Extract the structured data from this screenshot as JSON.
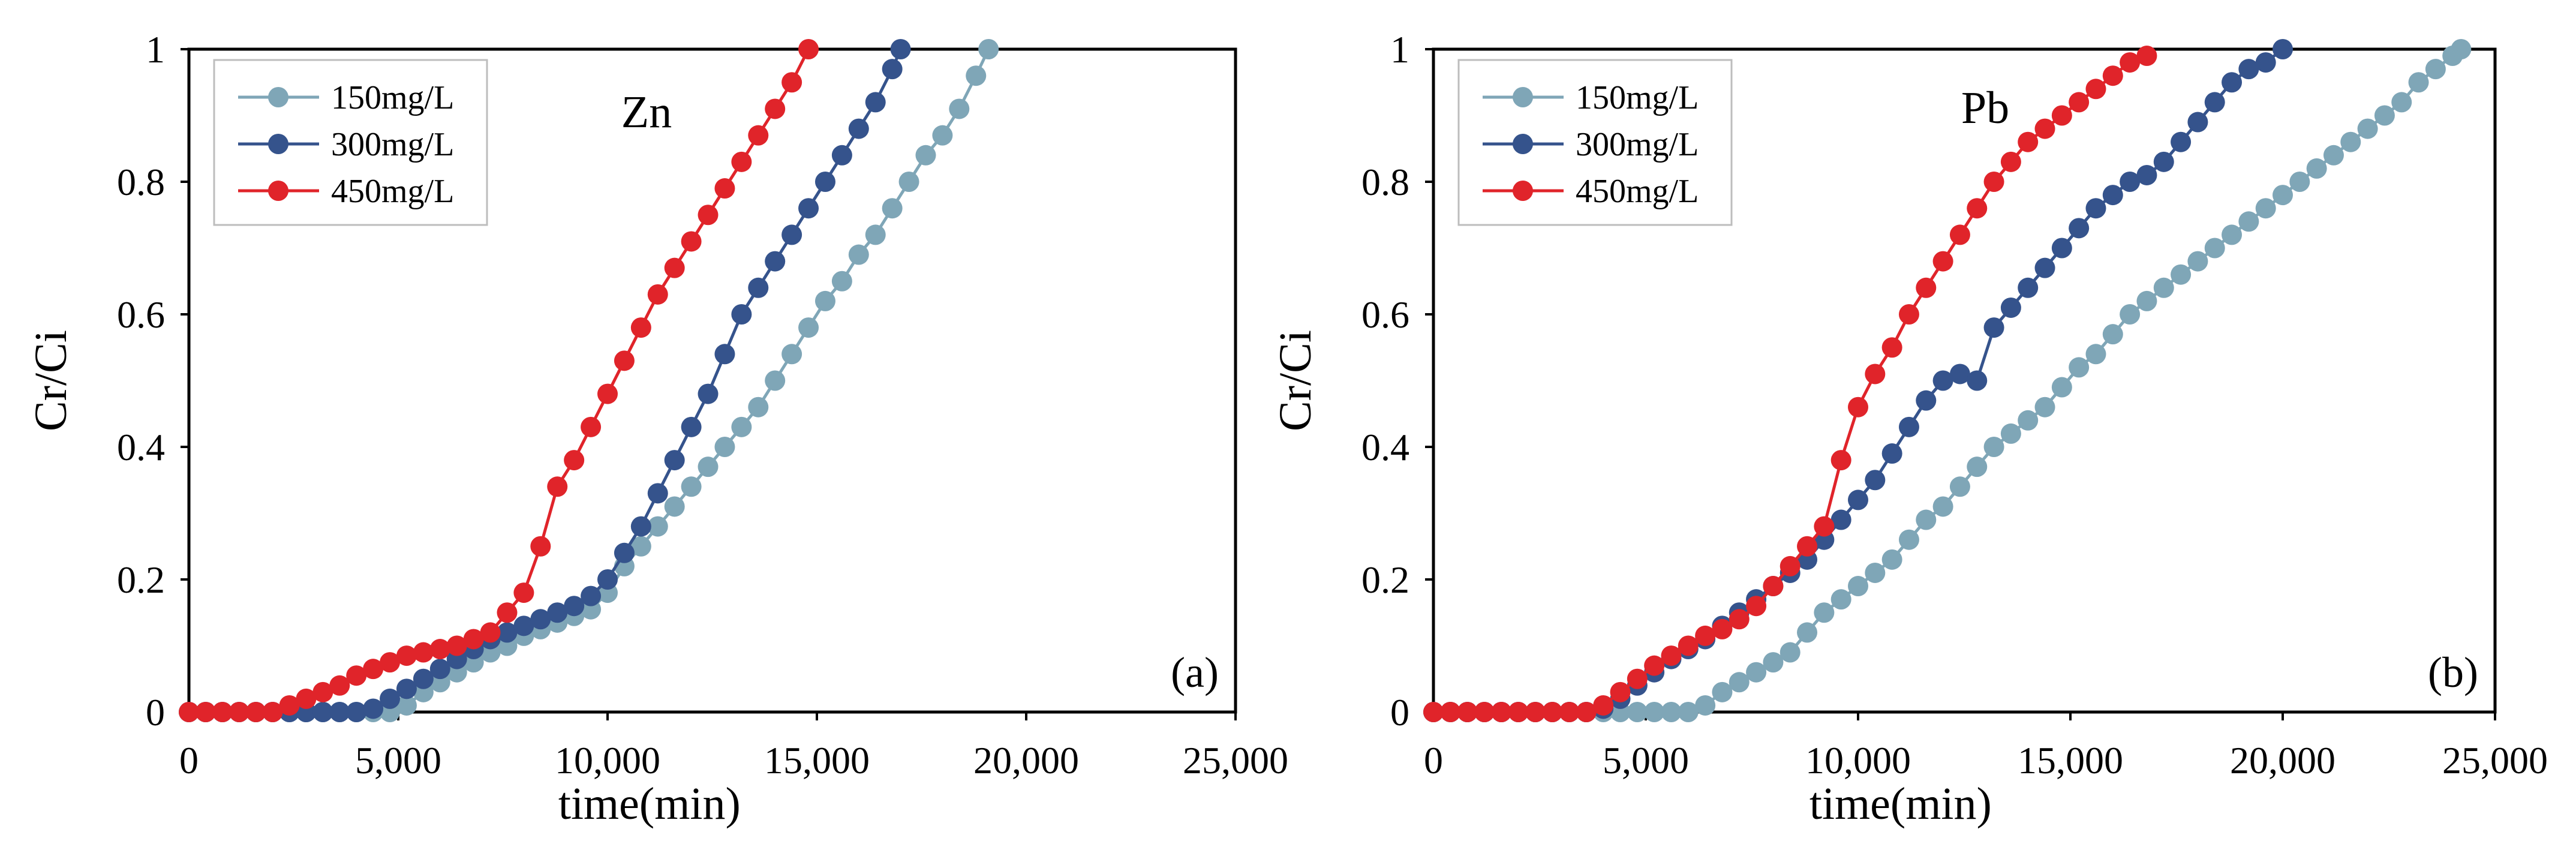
{
  "figure": {
    "colors": {
      "s150": "#7fa6b7",
      "s300": "#35538c",
      "s450": "#e0242a"
    }
  },
  "chart_data": [
    {
      "type": "line",
      "panel_label": "(a)",
      "metal": "Zn",
      "xlabel": "time(min)",
      "ylabel": "Cr/Ci",
      "xlim": [
        0,
        25000
      ],
      "ylim": [
        0,
        1
      ],
      "xticks": [
        "0",
        "5,000",
        "10,000",
        "15,000",
        "20,000",
        "25,000"
      ],
      "yticks": [
        "0",
        "0.2",
        "0.4",
        "0.6",
        "0.8",
        "1"
      ],
      "legend": [
        "150mg/L",
        "300mg/L",
        "450mg/L"
      ],
      "series": [
        {
          "name": "150mg/L",
          "x": [
            0,
            400,
            800,
            1200,
            1600,
            2000,
            2400,
            2800,
            3200,
            3600,
            4000,
            4400,
            4800,
            5200,
            5600,
            6000,
            6400,
            6800,
            7200,
            7600,
            8000,
            8400,
            8800,
            9200,
            9600,
            10000,
            10400,
            10800,
            11200,
            11600,
            12000,
            12400,
            12800,
            13200,
            13600,
            14000,
            14400,
            14800,
            15200,
            15600,
            16000,
            16400,
            16800,
            17200,
            17600,
            18000,
            18400,
            18800,
            19100
          ],
          "y": [
            0,
            0,
            0,
            0,
            0,
            0,
            0,
            0,
            0,
            0,
            0,
            0,
            0,
            0.01,
            0.03,
            0.045,
            0.06,
            0.075,
            0.09,
            0.1,
            0.115,
            0.125,
            0.135,
            0.145,
            0.155,
            0.18,
            0.22,
            0.25,
            0.28,
            0.31,
            0.34,
            0.37,
            0.4,
            0.43,
            0.46,
            0.5,
            0.54,
            0.58,
            0.62,
            0.65,
            0.69,
            0.72,
            0.76,
            0.8,
            0.84,
            0.87,
            0.91,
            0.96,
            1.0
          ]
        },
        {
          "name": "300mg/L",
          "x": [
            0,
            400,
            800,
            1200,
            1600,
            2000,
            2400,
            2800,
            3200,
            3600,
            4000,
            4400,
            4800,
            5200,
            5600,
            6000,
            6400,
            6800,
            7200,
            7600,
            8000,
            8400,
            8800,
            9200,
            9600,
            10000,
            10400,
            10800,
            11200,
            11600,
            12000,
            12400,
            12800,
            13200,
            13600,
            14000,
            14400,
            14800,
            15200,
            15600,
            16000,
            16400,
            16800,
            17000
          ],
          "y": [
            0,
            0,
            0,
            0,
            0,
            0,
            0,
            0,
            0,
            0,
            0,
            0.005,
            0.02,
            0.035,
            0.05,
            0.065,
            0.08,
            0.095,
            0.11,
            0.12,
            0.13,
            0.14,
            0.15,
            0.16,
            0.175,
            0.2,
            0.24,
            0.28,
            0.33,
            0.38,
            0.43,
            0.48,
            0.54,
            0.6,
            0.64,
            0.68,
            0.72,
            0.76,
            0.8,
            0.84,
            0.88,
            0.92,
            0.97,
            1.0
          ]
        },
        {
          "name": "450mg/L",
          "x": [
            0,
            400,
            800,
            1200,
            1600,
            2000,
            2400,
            2800,
            3200,
            3600,
            4000,
            4400,
            4800,
            5200,
            5600,
            6000,
            6400,
            6800,
            7200,
            7600,
            8000,
            8400,
            8800,
            9200,
            9600,
            10000,
            10400,
            10800,
            11200,
            11600,
            12000,
            12400,
            12800,
            13200,
            13600,
            14000,
            14400,
            14800
          ],
          "y": [
            0,
            0,
            0,
            0,
            0,
            0,
            0.01,
            0.02,
            0.03,
            0.04,
            0.055,
            0.065,
            0.075,
            0.085,
            0.09,
            0.095,
            0.1,
            0.11,
            0.12,
            0.15,
            0.18,
            0.25,
            0.34,
            0.38,
            0.43,
            0.48,
            0.53,
            0.58,
            0.63,
            0.67,
            0.71,
            0.75,
            0.79,
            0.83,
            0.87,
            0.91,
            0.95,
            1.0
          ]
        }
      ]
    },
    {
      "type": "line",
      "panel_label": "(b)",
      "metal": "Pb",
      "xlabel": "time(min)",
      "ylabel": "Cr/Ci",
      "xlim": [
        0,
        25000
      ],
      "ylim": [
        0,
        1
      ],
      "xticks": [
        "0",
        "5,000",
        "10,000",
        "15,000",
        "20,000",
        "25,000"
      ],
      "yticks": [
        "0",
        "0.2",
        "0.4",
        "0.6",
        "0.8",
        "1"
      ],
      "legend": [
        "150mg/L",
        "300mg/L",
        "450mg/L"
      ],
      "series": [
        {
          "name": "150mg/L",
          "x": [
            0,
            400,
            800,
            1200,
            1600,
            2000,
            2400,
            2800,
            3200,
            3600,
            4000,
            4400,
            4800,
            5200,
            5600,
            6000,
            6400,
            6800,
            7200,
            7600,
            8000,
            8400,
            8800,
            9200,
            9600,
            10000,
            10400,
            10800,
            11200,
            11600,
            12000,
            12400,
            12800,
            13200,
            13600,
            14000,
            14400,
            14800,
            15200,
            15600,
            16000,
            16400,
            16800,
            17200,
            17600,
            18000,
            18400,
            18800,
            19200,
            19600,
            20000,
            20400,
            20800,
            21200,
            21600,
            22000,
            22400,
            22800,
            23200,
            23600,
            24000,
            24200
          ],
          "y": [
            0,
            0,
            0,
            0,
            0,
            0,
            0,
            0,
            0,
            0,
            0,
            0,
            0,
            0,
            0,
            0,
            0.01,
            0.03,
            0.045,
            0.06,
            0.075,
            0.09,
            0.12,
            0.15,
            0.17,
            0.19,
            0.21,
            0.23,
            0.26,
            0.29,
            0.31,
            0.34,
            0.37,
            0.4,
            0.42,
            0.44,
            0.46,
            0.49,
            0.52,
            0.54,
            0.57,
            0.6,
            0.62,
            0.64,
            0.66,
            0.68,
            0.7,
            0.72,
            0.74,
            0.76,
            0.78,
            0.8,
            0.82,
            0.84,
            0.86,
            0.88,
            0.9,
            0.92,
            0.95,
            0.97,
            0.99,
            1.0
          ]
        },
        {
          "name": "300mg/L",
          "x": [
            0,
            400,
            800,
            1200,
            1600,
            2000,
            2400,
            2800,
            3200,
            3600,
            4000,
            4400,
            4800,
            5200,
            5600,
            6000,
            6400,
            6800,
            7200,
            7600,
            8000,
            8400,
            8800,
            9200,
            9600,
            10000,
            10400,
            10800,
            11200,
            11600,
            12000,
            12400,
            12800,
            13200,
            13600,
            14000,
            14400,
            14800,
            15200,
            15600,
            16000,
            16400,
            16800,
            17200,
            17600,
            18000,
            18400,
            18800,
            19200,
            19600,
            20000
          ],
          "y": [
            0,
            0,
            0,
            0,
            0,
            0,
            0,
            0,
            0,
            0,
            0.005,
            0.02,
            0.04,
            0.06,
            0.08,
            0.095,
            0.11,
            0.13,
            0.15,
            0.17,
            0.19,
            0.21,
            0.23,
            0.26,
            0.29,
            0.32,
            0.35,
            0.39,
            0.43,
            0.47,
            0.5,
            0.51,
            0.5,
            0.58,
            0.61,
            0.64,
            0.67,
            0.7,
            0.73,
            0.76,
            0.78,
            0.8,
            0.81,
            0.83,
            0.86,
            0.89,
            0.92,
            0.95,
            0.97,
            0.98,
            1.0
          ]
        },
        {
          "name": "450mg/L",
          "x": [
            0,
            400,
            800,
            1200,
            1600,
            2000,
            2400,
            2800,
            3200,
            3600,
            4000,
            4400,
            4800,
            5200,
            5600,
            6000,
            6400,
            6800,
            7200,
            7600,
            8000,
            8400,
            8800,
            9200,
            9600,
            10000,
            10400,
            10800,
            11200,
            11600,
            12000,
            12400,
            12800,
            13200,
            13600,
            14000,
            14400,
            14800,
            15200,
            15600,
            16000,
            16400,
            16800
          ],
          "y": [
            0,
            0,
            0,
            0,
            0,
            0,
            0,
            0,
            0,
            0,
            0.01,
            0.03,
            0.05,
            0.07,
            0.085,
            0.1,
            0.115,
            0.125,
            0.14,
            0.16,
            0.19,
            0.22,
            0.25,
            0.28,
            0.38,
            0.46,
            0.51,
            0.55,
            0.6,
            0.64,
            0.68,
            0.72,
            0.76,
            0.8,
            0.83,
            0.86,
            0.88,
            0.9,
            0.92,
            0.94,
            0.96,
            0.98,
            0.99
          ]
        }
      ]
    }
  ]
}
